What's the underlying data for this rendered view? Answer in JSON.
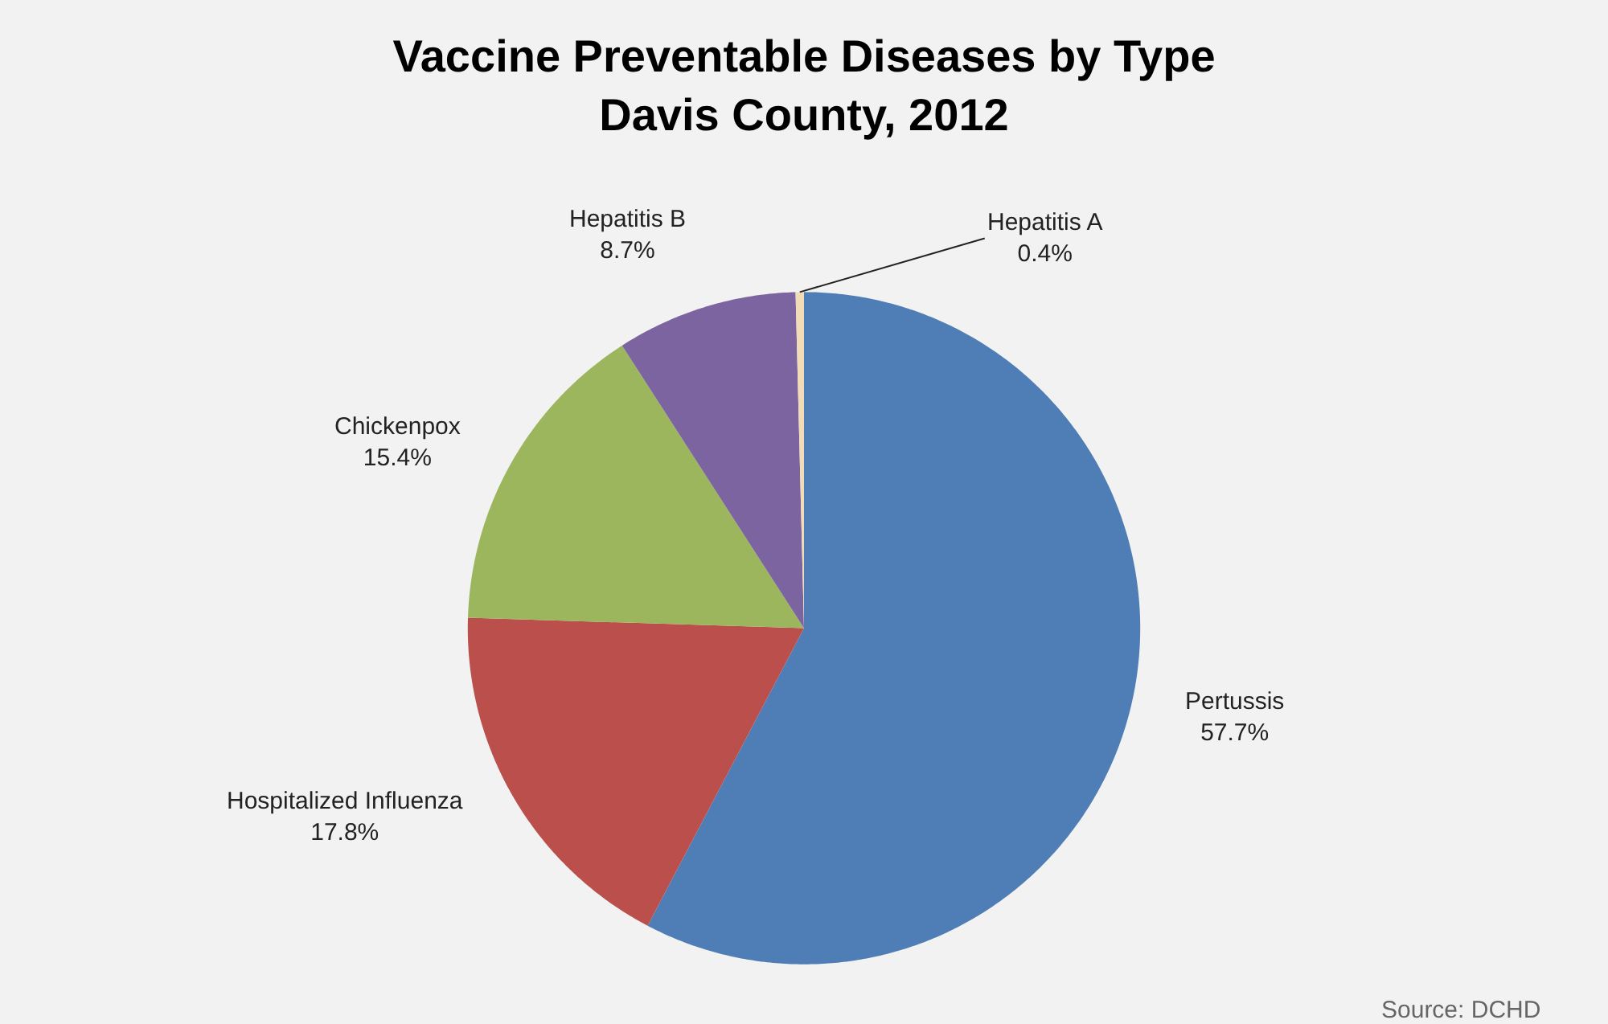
{
  "chart_data": {
    "type": "pie",
    "title": "Vaccine Preventable Diseases by Type\nDavis County, 2012",
    "categories": [
      "Pertussis",
      "Hospitalized Influenza",
      "Chickenpox",
      "Hepatitis B",
      "Hepatitis A"
    ],
    "values": [
      57.7,
      17.8,
      15.4,
      8.7,
      0.4
    ],
    "value_labels": [
      "57.7%",
      "17.8%",
      "15.4%",
      "8.7%",
      "0.4%"
    ],
    "colors": [
      "#4f7db5",
      "#bb4f4c",
      "#9bb65c",
      "#7c64a0",
      "#f2dcb8"
    ],
    "legend": false,
    "annotations": [
      "Source: DCHD"
    ]
  }
}
